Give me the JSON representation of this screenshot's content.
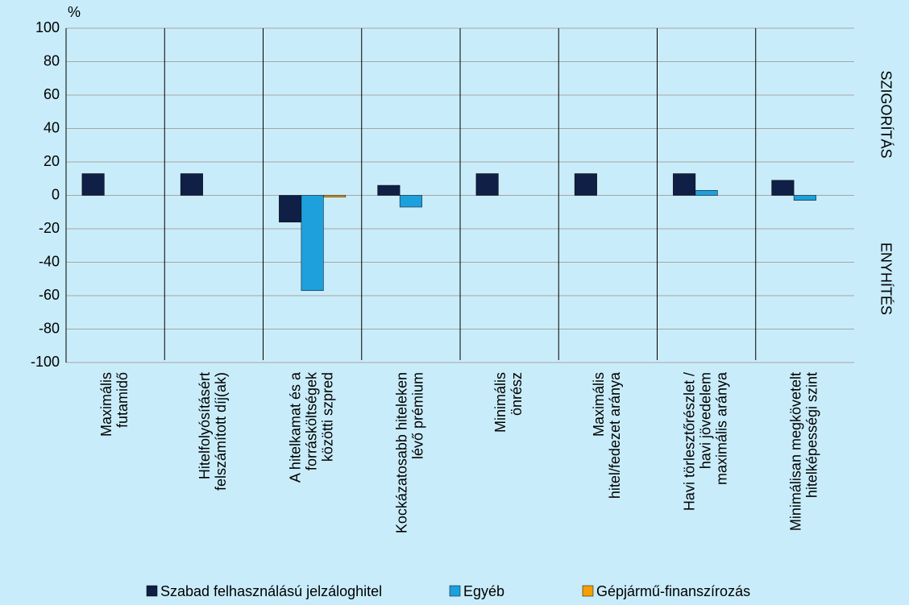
{
  "chart_data": {
    "type": "bar",
    "y_unit": "%",
    "right_labels": [
      "SZIGORÍTÁS",
      "ENYHÍTÉS"
    ],
    "categories": [
      [
        "Maximális",
        "futamidő"
      ],
      [
        "Hitelfolyósításért",
        "felszámított díj(ak)"
      ],
      [
        "A hitelkamat és a",
        "forrásköltségek",
        "közötti szpred"
      ],
      [
        "Kockázatosabb hiteleken",
        "lévő prémium"
      ],
      [
        "Minimális",
        "önrész"
      ],
      [
        "Maximális",
        "hitel/fedezet aránya"
      ],
      [
        "Havi törlesztőrészlet /",
        "havi jövedelem",
        "maximális aránya"
      ],
      [
        "Minimálisan megkövetelt",
        "hitelképességi szint"
      ]
    ],
    "series": [
      {
        "name": "Szabad felhasználású jelzáloghitel",
        "color": "#0f1f45",
        "values": [
          13,
          13,
          -16,
          6,
          13,
          13,
          13,
          9
        ]
      },
      {
        "name": "Egyéb",
        "color": "#1ea0dc",
        "values": [
          0,
          0,
          -57,
          -7,
          0,
          0,
          3,
          -3
        ]
      },
      {
        "name": "Gépjármű-finanszírozás",
        "color": "#f5a000",
        "values": [
          0,
          0,
          -1,
          0,
          0,
          0,
          0,
          0
        ]
      }
    ],
    "ylim": [
      -100,
      100
    ],
    "yticks": [
      -100,
      -80,
      -60,
      -40,
      -20,
      0,
      20,
      40,
      60,
      80,
      100
    ],
    "grid": true
  }
}
